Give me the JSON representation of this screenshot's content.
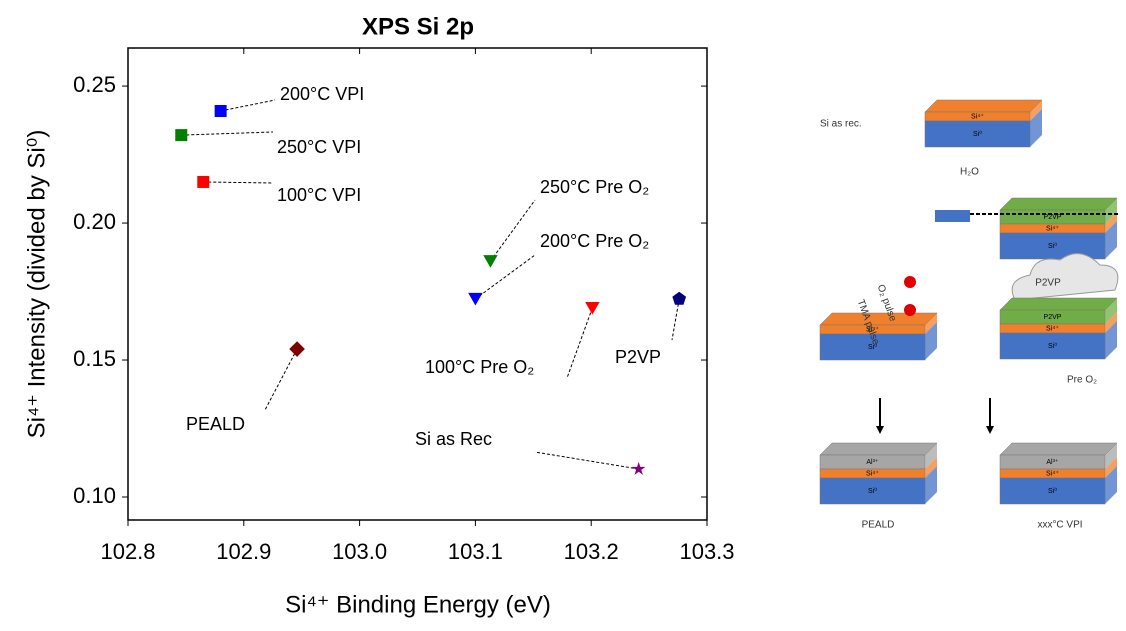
{
  "chart_data": {
    "type": "scatter",
    "title": "XPS Si 2p",
    "x_label": "Si⁴⁺ Binding Energy (eV)",
    "y_label": "Si⁴⁺ Intensity (divided by Si⁰)",
    "xlim": [
      102.8,
      103.3
    ],
    "ylim": [
      0.0916,
      0.2639
    ],
    "xticks": [
      102.8,
      102.9,
      {
        "value": 103,
        "label": "103.0"
      },
      103.1,
      103.2,
      103.3
    ],
    "yticks": [
      {
        "value": 0.1,
        "label": "0.10"
      },
      0.15,
      {
        "value": 0.2,
        "label": "0.20"
      },
      0.25
    ],
    "series": [
      {
        "name": "200°C VPI",
        "color": "#0000ff",
        "marker": "square",
        "x": [
          102.88
        ],
        "values": [
          0.2409
        ]
      },
      {
        "name": "250°C VPI",
        "color": "#008000",
        "marker": "square",
        "x": [
          102.846
        ],
        "values": [
          0.2321
        ]
      },
      {
        "name": "100°C VPI",
        "color": "#ff0000",
        "marker": "square",
        "x": [
          102.865
        ],
        "values": [
          0.215
        ]
      },
      {
        "name": "250°C Pre O₂",
        "color": "#008000",
        "marker": "triangle-down",
        "x": [
          103.113
        ],
        "values": [
          0.1861
        ]
      },
      {
        "name": "200°C Pre O₂",
        "color": "#0000ff",
        "marker": "triangle-down",
        "x": [
          103.1
        ],
        "values": [
          0.1723
        ]
      },
      {
        "name": "100°C Pre O₂",
        "color": "#ff0000",
        "marker": "triangle-down",
        "x": [
          103.201
        ],
        "values": [
          0.169
        ]
      },
      {
        "name": "P2VP",
        "color": "#000080",
        "marker": "pentagon",
        "x": [
          103.276
        ],
        "values": [
          0.1723
        ]
      },
      {
        "name": "PEALD",
        "color": "#800000",
        "marker": "diamond",
        "x": [
          102.946
        ],
        "values": [
          0.154
        ]
      },
      {
        "name": "Si as Rec",
        "color": "#800080",
        "marker": "star",
        "x": [
          103.241
        ],
        "values": [
          0.1102
        ]
      }
    ]
  },
  "diagram": {
    "labels": [
      "Si as rec.",
      "P2VP",
      "Pre O₂",
      "PEALD",
      "xxx°C VPI",
      "O₂ pulse",
      "TMA pulse",
      "H₂O"
    ],
    "layers": [
      "Si⁴⁺",
      "Si⁰",
      "P2VP",
      "Al³⁺"
    ]
  }
}
